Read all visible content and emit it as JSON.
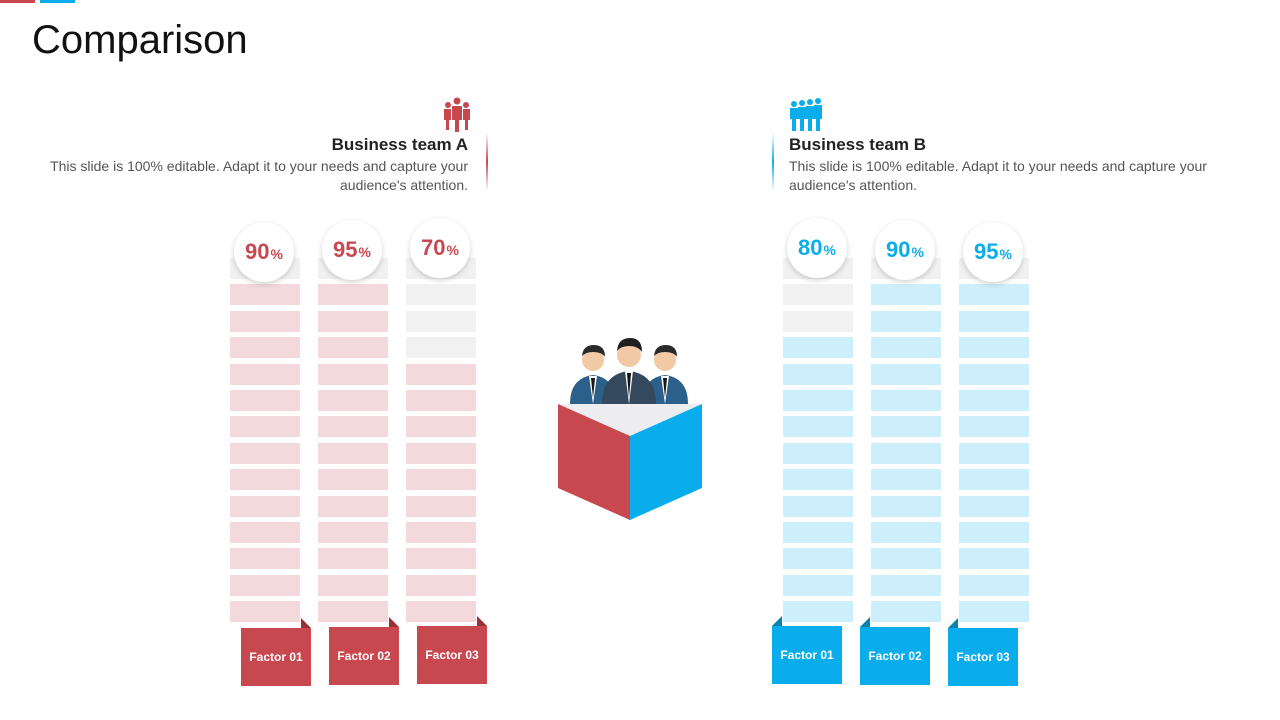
{
  "page": {
    "title": "Comparison",
    "colors": {
      "red": "#C7484F",
      "blue": "#0AADEB",
      "red_light": "#F4D9DC",
      "blue_light": "#CDEFFB",
      "grey_light": "#F1F1F1"
    }
  },
  "team_a": {
    "heading": "Business team A",
    "description": "This slide is 100% editable. Adapt it to your needs and capture your audience's attention.",
    "icon": "people-group-icon",
    "factors": [
      {
        "label": "Factor 01",
        "value": "90",
        "unit": "%",
        "percent": 90
      },
      {
        "label": "Factor 02",
        "value": "95",
        "unit": "%",
        "percent": 95
      },
      {
        "label": "Factor 03",
        "value": "70",
        "unit": "%",
        "percent": 70
      }
    ]
  },
  "team_b": {
    "heading": "Business team B",
    "description": "This slide is 100% editable. Adapt it to your needs and capture your audience's attention.",
    "icon": "people-group-icon",
    "factors": [
      {
        "label": "Factor 01",
        "value": "80",
        "unit": "%",
        "percent": 80
      },
      {
        "label": "Factor 02",
        "value": "90",
        "unit": "%",
        "percent": 90
      },
      {
        "label": "Factor 03",
        "value": "95",
        "unit": "%",
        "percent": 95
      }
    ]
  },
  "center": {
    "icon": "business-team-box-icon"
  }
}
